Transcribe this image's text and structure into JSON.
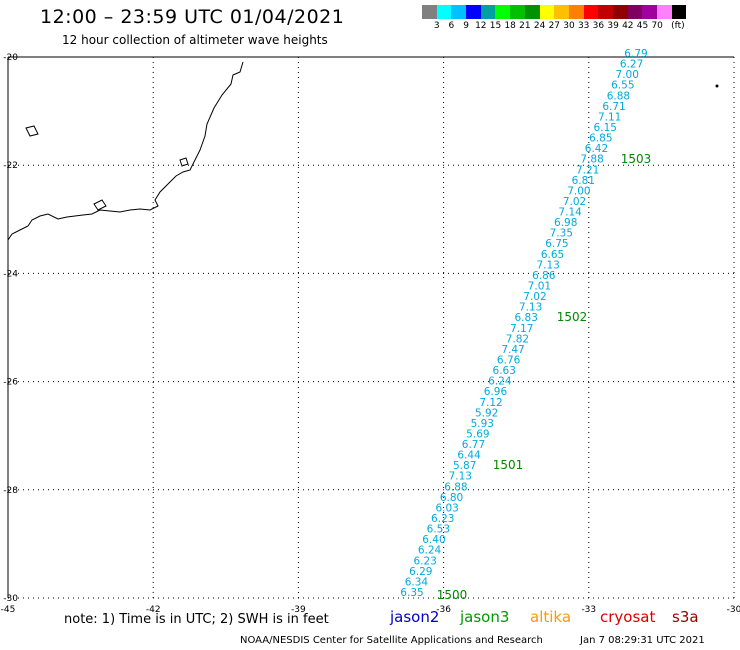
{
  "header": {
    "title": "12:00 – 23:59 UTC 01/04/2021",
    "subtitle": "12 hour collection of altimeter wave heights"
  },
  "legend": {
    "colors": [
      "#808080",
      "#00ffff",
      "#00c0ff",
      "#0000ff",
      "#00a0a0",
      "#00ff00",
      "#00c000",
      "#009000",
      "#ffff00",
      "#ffc000",
      "#ff8000",
      "#ff0000",
      "#c00000",
      "#900000",
      "#800060",
      "#a000a0",
      "#ff80ff",
      "#000000"
    ],
    "labels": [
      "3",
      "6",
      "9",
      "12",
      "15",
      "18",
      "21",
      "24",
      "27",
      "30",
      "33",
      "36",
      "39",
      "42",
      "45",
      "70",
      "(ft)"
    ],
    "unit": "(ft)"
  },
  "map": {
    "lon_range": [
      -45,
      -30
    ],
    "lat_range": [
      -30,
      -20
    ],
    "lon_ticks": [
      "-45",
      "-42",
      "-39",
      "-36",
      "-33",
      "-30"
    ],
    "lat_ticks": [
      "-20",
      "-22",
      "-24",
      "-26",
      "-28",
      "-30"
    ],
    "track_color": "#00aadd",
    "track_values": [
      "6.79",
      "6.27",
      "7.00",
      "6.55",
      "6.88",
      "6.71",
      "7.11",
      "6.15",
      "6.85",
      "6.42",
      "7.88",
      "7.21",
      "6.81",
      "7.00",
      "7.02",
      "7.14",
      "6.98",
      "7.35",
      "6.75",
      "6.65",
      "7.13",
      "6.86",
      "7.01",
      "7.02",
      "7.13",
      "6.83",
      "7.17",
      "7.82",
      "7.47",
      "6.76",
      "6.63",
      "6.24",
      "6.96",
      "7.12",
      "5.92",
      "5.93",
      "5.69",
      "6.77",
      "6.44",
      "5.87",
      "7.13",
      "6.88",
      "6.80",
      "6.03",
      "6.23",
      "6.53",
      "6.40",
      "6.24",
      "6.23",
      "6.29",
      "6.34",
      "6.35"
    ],
    "times": [
      "1503",
      "1502",
      "1501",
      "1500"
    ],
    "time_color": "#008800"
  },
  "footer": {
    "note": "note: 1) Time is in UTC; 2) SWH is in feet",
    "satellites": [
      {
        "name": "jason2",
        "color": "#0000cc"
      },
      {
        "name": "jason3",
        "color": "#009900"
      },
      {
        "name": "altika",
        "color": "#ff9900"
      },
      {
        "name": "cryosat",
        "color": "#dd0000"
      },
      {
        "name": "s3a",
        "color": "#990000"
      }
    ],
    "credit": "NOAA/NESDIS Center for Satellite Applications and Research",
    "date": "Jan  7 08:29:31 UTC 2021"
  }
}
